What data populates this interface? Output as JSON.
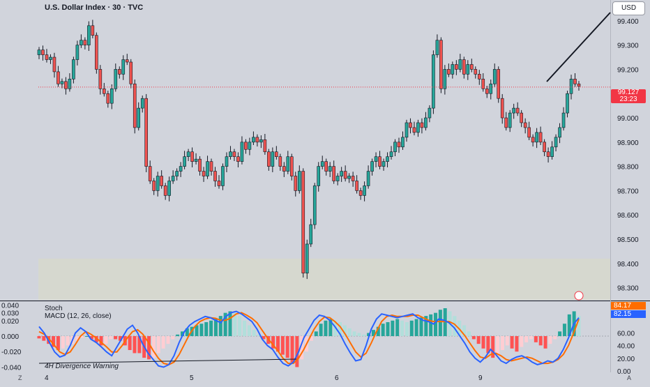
{
  "header": {
    "title": "U.S. Dollar Index · 30 · TVC",
    "currency": "USD"
  },
  "price_badge": {
    "price": "99.127",
    "countdown": "23:23"
  },
  "indicators": {
    "stoch_label": "Stoch",
    "macd_label": "MACD (12, 26, close)",
    "stoch_k_value": "84.17",
    "stoch_d_value": "82.15",
    "divergence_text": "4H Divergence Warning"
  },
  "controls": {
    "zoom": "Z",
    "auto": "A"
  },
  "colors": {
    "background": "#d1d4dc",
    "up": "#26a69a",
    "down": "#ef5350",
    "candle_wick": "#131722",
    "stoch_k": "#2962ff",
    "stoch_d": "#ff6d00",
    "hist_pos_strong": "#26a69a",
    "hist_pos_weak": "#b2dfdb",
    "hist_neg_strong": "#ff5252",
    "hist_neg_weak": "#ffcdd2",
    "current_price_line": "#f23645",
    "zone_fill": "#d6d8cf"
  },
  "chart_data": [
    {
      "type": "candlestick",
      "title": "U.S. Dollar Index · 30 · TVC",
      "ylim": [
        98.25,
        99.48
      ],
      "y_ticks": [
        "99.400",
        "99.300",
        "99.200",
        "99.100",
        "99.000",
        "98.900",
        "98.800",
        "98.700",
        "98.600",
        "98.500",
        "98.400",
        "98.300"
      ],
      "x_ticks": [
        "4",
        "5",
        "6",
        "9"
      ],
      "current_price": 99.127,
      "closes": [
        99.28,
        99.26,
        99.24,
        99.25,
        99.19,
        99.14,
        99.15,
        99.12,
        99.16,
        99.24,
        99.3,
        99.32,
        99.3,
        99.38,
        99.34,
        99.2,
        99.12,
        99.1,
        99.06,
        99.12,
        99.2,
        99.18,
        99.24,
        99.23,
        99.14,
        98.96,
        99.04,
        99.08,
        98.8,
        98.74,
        98.7,
        98.76,
        98.72,
        98.68,
        98.74,
        98.76,
        98.78,
        98.8,
        98.84,
        98.86,
        98.82,
        98.83,
        98.78,
        98.76,
        98.82,
        98.78,
        98.74,
        98.72,
        98.8,
        98.84,
        98.86,
        98.84,
        98.82,
        98.9,
        98.87,
        98.9,
        98.92,
        98.9,
        98.91,
        98.86,
        98.8,
        98.86,
        98.84,
        98.8,
        98.78,
        98.84,
        98.76,
        98.7,
        98.78,
        98.36,
        98.48,
        98.56,
        98.72,
        98.8,
        98.82,
        98.78,
        98.8,
        98.74,
        98.76,
        98.78,
        98.75,
        98.76,
        98.74,
        98.7,
        98.68,
        98.72,
        98.78,
        98.82,
        98.84,
        98.8,
        98.82,
        98.84,
        98.86,
        98.9,
        98.88,
        98.92,
        98.98,
        98.96,
        98.94,
        98.98,
        98.96,
        99.0,
        99.04,
        99.26,
        99.32,
        99.12,
        99.2,
        99.18,
        99.22,
        99.2,
        99.24,
        99.18,
        99.22,
        99.2,
        99.18,
        99.16,
        99.12,
        99.1,
        99.14,
        99.2,
        99.08,
        99.0,
        98.96,
        99.02,
        99.04,
        99.02,
        98.98,
        98.96,
        98.92,
        98.9,
        98.94,
        98.9,
        98.86,
        98.84,
        98.88,
        98.92,
        98.96,
        99.02,
        99.1,
        99.16,
        99.14,
        99.13
      ]
    },
    {
      "type": "indicator",
      "title": "Stoch / MACD (12, 26, close)",
      "macd_ylim": [
        -0.045,
        0.045
      ],
      "macd_ticks": [
        "0.040",
        "0.030",
        "0.020",
        "0.000",
        "-0.020",
        "-0.040"
      ],
      "stoch_ticks": [
        "60.00",
        "40.00",
        "20.00",
        "0.00"
      ],
      "stoch_ylim": [
        0,
        110
      ],
      "macd_hist": [
        -0.003,
        -0.006,
        -0.01,
        -0.014,
        -0.018,
        -0.016,
        -0.012,
        -0.01,
        -0.006,
        -0.002,
        0.0,
        -0.004,
        -0.008,
        -0.012,
        -0.01,
        -0.004,
        -0.004,
        -0.006,
        -0.012,
        -0.018,
        -0.022,
        -0.022,
        -0.028,
        -0.03,
        -0.028,
        -0.022,
        -0.016,
        -0.01,
        -0.004,
        0.002,
        0.006,
        0.01,
        0.012,
        0.014,
        0.016,
        0.018,
        0.02,
        0.022,
        0.026,
        0.03,
        0.032,
        0.03,
        0.026,
        0.02,
        0.014,
        0.008,
        0.002,
        -0.004,
        -0.01,
        -0.016,
        -0.02,
        -0.024,
        -0.028,
        -0.034,
        -0.04,
        -0.03,
        -0.02,
        -0.006,
        0.006,
        0.016,
        0.02,
        0.022,
        0.02,
        0.018,
        0.014,
        0.01,
        0.006,
        0.004,
        0.002,
        0.004,
        0.008,
        0.012,
        0.016,
        0.018,
        0.02,
        0.022,
        0.02,
        0.018,
        0.02,
        0.022,
        0.024,
        0.026,
        0.028,
        0.03,
        0.034,
        0.036,
        0.032,
        0.026,
        0.02,
        0.014,
        0.006,
        -0.004,
        -0.01,
        -0.016,
        -0.022,
        -0.028,
        -0.024,
        -0.018,
        -0.012,
        -0.016,
        -0.02,
        -0.014,
        -0.008,
        -0.004,
        -0.008,
        -0.012,
        -0.016,
        -0.01,
        -0.004,
        0.006,
        0.016,
        0.028,
        0.032,
        0.026
      ],
      "stoch_k": [
        70,
        60,
        45,
        30,
        22,
        25,
        40,
        60,
        68,
        62,
        50,
        45,
        38,
        30,
        24,
        38,
        52,
        66,
        72,
        60,
        42,
        28,
        18,
        8,
        6,
        10,
        24,
        45,
        62,
        72,
        78,
        82,
        86,
        84,
        80,
        76,
        86,
        92,
        94,
        90,
        84,
        78,
        66,
        50,
        40,
        34,
        22,
        12,
        8,
        14,
        30,
        52,
        66,
        80,
        88,
        86,
        80,
        70,
        58,
        42,
        28,
        16,
        18,
        40,
        66,
        82,
        90,
        88,
        86,
        84,
        86,
        88,
        90,
        84,
        80,
        78,
        74,
        82,
        80,
        76,
        68,
        56,
        44,
        30,
        20,
        14,
        22,
        34,
        26,
        16,
        12,
        18,
        22,
        24,
        20,
        14,
        10,
        12,
        16,
        14,
        20,
        34,
        52,
        74,
        84
      ],
      "stoch_d": [
        62,
        58,
        50,
        40,
        30,
        26,
        30,
        42,
        55,
        62,
        58,
        52,
        45,
        38,
        30,
        30,
        40,
        52,
        62,
        65,
        58,
        46,
        32,
        20,
        12,
        10,
        14,
        26,
        42,
        58,
        70,
        78,
        82,
        84,
        83,
        80,
        80,
        84,
        90,
        92,
        88,
        83,
        76,
        64,
        52,
        42,
        32,
        20,
        12,
        12,
        20,
        34,
        50,
        66,
        78,
        85,
        84,
        78,
        70,
        58,
        44,
        30,
        22,
        28,
        44,
        62,
        78,
        86,
        88,
        86,
        86,
        86,
        88,
        88,
        84,
        80,
        78,
        78,
        78,
        78,
        74,
        66,
        56,
        44,
        32,
        22,
        20,
        26,
        28,
        24,
        18,
        16,
        18,
        20,
        22,
        20,
        16,
        12,
        12,
        14,
        18,
        26,
        40,
        60,
        82
      ]
    }
  ]
}
